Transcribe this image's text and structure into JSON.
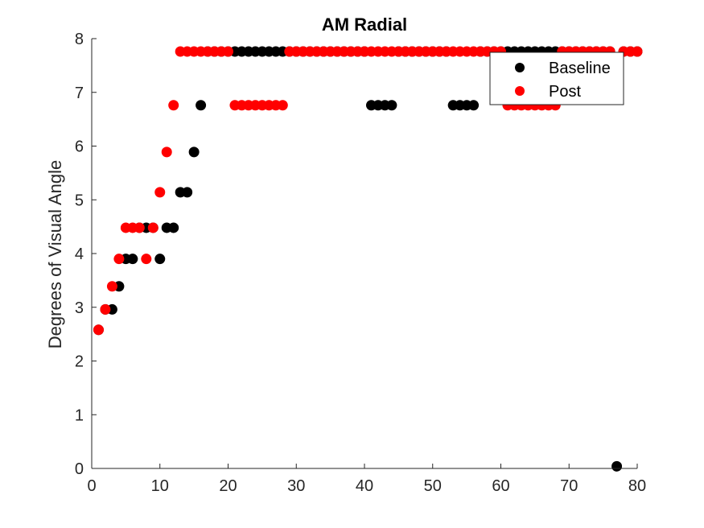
{
  "chart_data": {
    "type": "scatter",
    "title": "AM Radial",
    "xlabel": "",
    "ylabel": "Degrees of Visual Angle",
    "xlim": [
      0,
      80
    ],
    "ylim": [
      0,
      8
    ],
    "xticks": [
      0,
      10,
      20,
      30,
      40,
      50,
      60,
      70,
      80
    ],
    "yticks": [
      0,
      1,
      2,
      3,
      4,
      5,
      6,
      7,
      8
    ],
    "grid": false,
    "legend_position": "top-right",
    "series": [
      {
        "name": "Baseline",
        "color": "#000000",
        "x": [
          1,
          2,
          3,
          4,
          5,
          6,
          7,
          8,
          9,
          10,
          11,
          12,
          13,
          14,
          15,
          16,
          17,
          18,
          19,
          20,
          21,
          22,
          23,
          24,
          25,
          26,
          27,
          28,
          29,
          30,
          31,
          32,
          33,
          34,
          35,
          36,
          37,
          38,
          39,
          40,
          41,
          42,
          43,
          44,
          45,
          46,
          47,
          48,
          49,
          50,
          51,
          52,
          53,
          54,
          55,
          56,
          57,
          58,
          59,
          60,
          61,
          62,
          63,
          64,
          65,
          66,
          67,
          68,
          69,
          70,
          71,
          72,
          73,
          74,
          75,
          76,
          77,
          78,
          79,
          80
        ],
        "y": [
          2.58,
          2.96,
          2.96,
          3.39,
          3.9,
          3.9,
          4.48,
          4.48,
          4.48,
          3.9,
          4.48,
          4.48,
          5.14,
          5.14,
          5.89,
          6.76,
          7.76,
          7.76,
          7.76,
          7.76,
          7.76,
          7.76,
          7.76,
          7.76,
          7.76,
          7.76,
          7.76,
          7.76,
          7.76,
          7.76,
          7.76,
          7.76,
          7.76,
          7.76,
          7.76,
          7.76,
          7.76,
          7.76,
          7.76,
          7.76,
          6.76,
          6.76,
          6.76,
          6.76,
          7.76,
          7.76,
          7.76,
          7.76,
          7.76,
          7.76,
          7.76,
          7.76,
          6.76,
          6.76,
          6.76,
          6.76,
          7.76,
          7.76,
          7.76,
          7.76,
          7.76,
          7.76,
          7.76,
          7.76,
          7.76,
          7.76,
          7.76,
          7.76,
          7.76,
          7.76,
          7.76,
          7.76,
          7.76,
          7.76,
          7.76,
          7.76,
          0.04,
          7.76,
          7.76,
          7.76
        ]
      },
      {
        "name": "Post",
        "color": "#ff0000",
        "x": [
          1,
          2,
          3,
          4,
          5,
          6,
          7,
          8,
          9,
          10,
          11,
          12,
          13,
          14,
          15,
          16,
          17,
          18,
          19,
          20,
          21,
          22,
          23,
          24,
          25,
          26,
          27,
          28,
          29,
          30,
          31,
          32,
          33,
          34,
          35,
          36,
          37,
          38,
          39,
          40,
          41,
          42,
          43,
          44,
          45,
          46,
          47,
          48,
          49,
          50,
          51,
          52,
          53,
          54,
          55,
          56,
          57,
          58,
          59,
          60,
          61,
          62,
          63,
          64,
          65,
          66,
          67,
          68,
          69,
          70,
          71,
          72,
          73,
          74,
          75,
          76,
          78,
          79,
          80
        ],
        "y": [
          2.58,
          2.96,
          3.39,
          3.9,
          4.48,
          4.48,
          4.48,
          3.9,
          4.48,
          5.14,
          5.89,
          6.76,
          7.76,
          7.76,
          7.76,
          7.76,
          7.76,
          7.76,
          7.76,
          7.76,
          6.76,
          6.76,
          6.76,
          6.76,
          6.76,
          6.76,
          6.76,
          6.76,
          7.76,
          7.76,
          7.76,
          7.76,
          7.76,
          7.76,
          7.76,
          7.76,
          7.76,
          7.76,
          7.76,
          7.76,
          7.76,
          7.76,
          7.76,
          7.76,
          7.76,
          7.76,
          7.76,
          7.76,
          7.76,
          7.76,
          7.76,
          7.76,
          7.76,
          7.76,
          7.76,
          7.76,
          7.76,
          7.76,
          7.76,
          7.76,
          6.76,
          6.76,
          6.76,
          6.76,
          6.76,
          6.76,
          6.76,
          6.76,
          7.76,
          7.76,
          7.76,
          7.76,
          7.76,
          7.76,
          7.76,
          7.76,
          7.76,
          7.76,
          7.76
        ]
      }
    ]
  }
}
